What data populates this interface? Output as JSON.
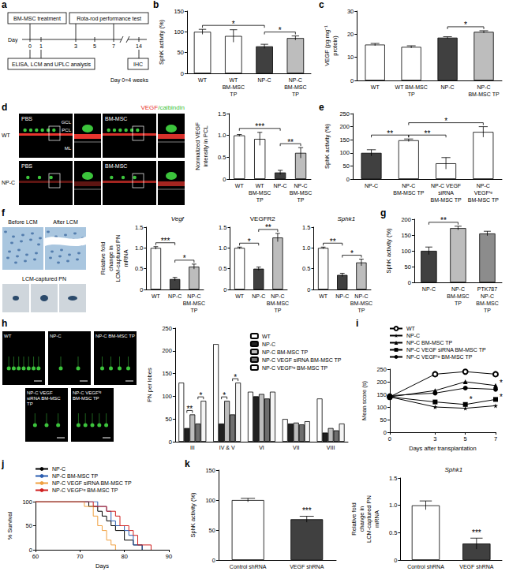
{
  "diagram_a": {
    "panel": "a",
    "treatment": "BM-MSC treatment",
    "test": "Rota-rod performance test",
    "analysis": "ELISA, LCM and UPLC analysis",
    "histology": "IHC",
    "axis_label": "Day",
    "days": [
      "0",
      "1",
      "3",
      "5",
      "7",
      "14"
    ],
    "note": "Day 0=4 weeks"
  },
  "images_d": {
    "panel": "d",
    "columns": [
      "PBS",
      "BM-MSC"
    ],
    "rows": [
      "WT",
      "NP-C"
    ],
    "layers": [
      "GCL",
      "PCL",
      "ML"
    ],
    "stain": [
      {
        "text": "VEGF",
        "color": "#e8352e"
      },
      {
        "text": "/calbindin",
        "color": "#3cc43c"
      }
    ]
  },
  "images_f": {
    "panel": "f",
    "captions": [
      "Before LCM",
      "After LCM",
      "LCM-captured PN"
    ]
  },
  "images_h": {
    "panel": "h",
    "captions": [
      "WT",
      "NP-C",
      "NP-C BM-MSC TP",
      "NP-C VEGF siRNA BM-MSC TP",
      "NP-C VEGFᵗᵍ BM-MSC TP"
    ]
  },
  "chart_data": [
    {
      "panel": "b",
      "type": "bar",
      "ylabel": "SphK activity (%)",
      "categories": [
        "WT",
        "WT BM-MSC TP",
        "NP-C",
        "NP-C BM-MSC TP"
      ],
      "values": [
        100,
        90,
        65,
        85
      ],
      "errors": [
        6,
        15,
        5,
        5
      ],
      "colors": [
        "#ffffff",
        "#ffffff",
        "#404040",
        "#bdbdbd"
      ],
      "ylim": [
        0,
        150
      ],
      "yticks": [
        0,
        50,
        100,
        150
      ],
      "annotations": [
        {
          "from": 0,
          "to": 2,
          "text": "*"
        },
        {
          "from": 2,
          "to": 3,
          "text": "*"
        }
      ]
    },
    {
      "panel": "c",
      "type": "bar",
      "ylabel": "VEGF (pg mg⁻¹ protein)",
      "categories": [
        "WT",
        "WT BM-MSC TP",
        "NP-C",
        "NP-C BM-MSC TP"
      ],
      "values": [
        15.5,
        14.5,
        18.5,
        21
      ],
      "errors": [
        0.5,
        0.5,
        0.4,
        0.5
      ],
      "colors": [
        "#ffffff",
        "#ffffff",
        "#404040",
        "#bdbdbd"
      ],
      "ylim": [
        0,
        30
      ],
      "yticks": [
        0,
        10,
        20,
        30
      ],
      "annotations": [
        {
          "from": 2,
          "to": 3,
          "text": "*"
        }
      ]
    },
    {
      "type": "bar",
      "ylabel": "Normalized VEGF intensity in PCL",
      "categories": [
        "WT",
        "WT BM-MSC TP",
        "NP-C",
        "NP-C BM-MSC TP"
      ],
      "values": [
        1.0,
        0.92,
        0.15,
        0.6
      ],
      "errors": [
        0.02,
        0.15,
        0.05,
        0.12
      ],
      "colors": [
        "#ffffff",
        "#ffffff",
        "#404040",
        "#bdbdbd"
      ],
      "ylim": [
        0,
        1.5
      ],
      "yticks": [
        0,
        0.5,
        {
          "value": 1,
          "label": "1.0"
        },
        1.5
      ],
      "annotations": [
        {
          "from": 0,
          "to": 2,
          "text": "***"
        },
        {
          "from": 2,
          "to": 3,
          "text": "**"
        }
      ]
    },
    {
      "panel": "e",
      "type": "bar",
      "ylabel": "SphK activity (%)",
      "categories": [
        "NP-C",
        "NP-C BM-MSC TP",
        "NP-C VEGF siRNA BM-MSC TP",
        "NP-C VEGFᵗᵍ BM-MSC TP"
      ],
      "values": [
        100,
        148,
        60,
        180
      ],
      "errors": [
        12,
        5,
        22,
        20
      ],
      "colors": [
        "#404040",
        "#ffffff",
        "#ffffff",
        "#ffffff"
      ],
      "ylim": [
        0,
        250
      ],
      "yticks": [
        0,
        50,
        100,
        150,
        200,
        250
      ],
      "annotations": [
        {
          "from": 0,
          "to": 1,
          "text": "**"
        },
        {
          "from": 1,
          "to": 2,
          "text": "**"
        },
        {
          "from": 1,
          "to": 3,
          "text": "*"
        }
      ]
    },
    {
      "type": "bar",
      "title": "Vegf",
      "ylabel": "Relative fold change in LCM-captured PN mRNA",
      "categories": [
        "WT",
        "NP-C",
        "NP-C BM-MSC TP"
      ],
      "values": [
        1.0,
        0.25,
        0.55
      ],
      "errors": [
        0.03,
        0.04,
        0.06
      ],
      "colors": [
        "#ffffff",
        "#404040",
        "#bdbdbd"
      ],
      "ylim": [
        0,
        1.5
      ],
      "yticks": [
        0,
        0.5,
        {
          "value": 1,
          "label": "1.0"
        },
        1.5
      ],
      "annotations": [
        {
          "from": 0,
          "to": 1,
          "text": "***"
        },
        {
          "from": 1,
          "to": 2,
          "text": "*"
        }
      ]
    },
    {
      "type": "bar",
      "title": "VEGFR2",
      "categories": [
        "WT",
        "NP-C",
        "NP-C BM-MSC TP"
      ],
      "values": [
        1.0,
        0.5,
        1.25
      ],
      "errors": [
        0.02,
        0.04,
        0.1
      ],
      "colors": [
        "#ffffff",
        "#404040",
        "#bdbdbd"
      ],
      "ylim": [
        0,
        1.5
      ],
      "yticks": [
        0,
        0.5,
        {
          "value": 1,
          "label": "1.0"
        },
        1.5
      ],
      "annotations": [
        {
          "from": 0,
          "to": 1,
          "text": "*"
        },
        {
          "from": 1,
          "to": 2,
          "text": "**"
        }
      ]
    },
    {
      "type": "bar",
      "title": "Sphk1",
      "categories": [
        "WT",
        "NP-C",
        "NP-C BM-MSC TP"
      ],
      "values": [
        1.0,
        0.35,
        0.65
      ],
      "errors": [
        0.02,
        0.04,
        0.08
      ],
      "colors": [
        "#ffffff",
        "#404040",
        "#bdbdbd"
      ],
      "ylim": [
        0,
        1.5
      ],
      "yticks": [
        0,
        0.5,
        {
          "value": 1,
          "label": "1.0"
        },
        1.5
      ],
      "annotations": [
        {
          "from": 0,
          "to": 1,
          "text": "**"
        },
        {
          "from": 1,
          "to": 2,
          "text": "*"
        }
      ]
    },
    {
      "panel": "g",
      "type": "bar",
      "ylabel": "SphK activity (%)",
      "categories": [
        "NP-C",
        "NP-C BM-MSC TP",
        "PTK787 NP-C BM-MSC TP"
      ],
      "values": [
        100,
        172,
        155
      ],
      "errors": [
        12,
        6,
        7
      ],
      "colors": [
        "#404040",
        "#bdbdbd",
        "#8c8c8c"
      ],
      "ylim": [
        0,
        200
      ],
      "yticks": [
        0,
        50,
        100,
        150,
        200
      ],
      "annotations": [
        {
          "from": 0,
          "to": 1,
          "text": "**"
        }
      ]
    },
    {
      "type": "bar",
      "ylabel": "PN per lobes",
      "categories": [
        "III",
        "IV & V",
        "VI",
        "VII",
        "VIII"
      ],
      "series": [
        {
          "name": "WT",
          "color": "#ffffff",
          "values": [
            130,
            215,
            110,
            50,
            95
          ]
        },
        {
          "name": "NP-C",
          "color": "#202020",
          "values": [
            30,
            40,
            100,
            40,
            20
          ]
        },
        {
          "name": "NP-C BM-MSC TP",
          "color": "#bdbdbd",
          "values": [
            60,
            90,
            105,
            42,
            30
          ]
        },
        {
          "name": "NP-C VEGF siRNA BM-MSC TP",
          "color": "#6e6e6e",
          "values": [
            40,
            60,
            95,
            38,
            25
          ]
        },
        {
          "name": "NP-C VEGFᵗᵍ BM-MSC TP",
          "color": "#f4f4f4",
          "values": [
            90,
            130,
            110,
            45,
            40
          ]
        }
      ],
      "ylim": [
        0,
        250
      ],
      "yticks": [
        0,
        50,
        100,
        150,
        200,
        250
      ],
      "legend": "top-right",
      "annotations": [
        {
          "category": 0,
          "from": 1,
          "to": 2,
          "text": "**"
        },
        {
          "category": 0,
          "from": 3,
          "to": 4,
          "text": "*"
        },
        {
          "category": 1,
          "from": 1,
          "to": 2,
          "text": "*"
        },
        {
          "category": 1,
          "from": 3,
          "to": 4,
          "text": "*"
        }
      ]
    },
    {
      "panel": "i",
      "type": "line",
      "xlabel": "Days after transplantation",
      "ylabel": "Mean score (s)",
      "x": [
        0,
        3,
        5,
        7
      ],
      "xlim": [
        0,
        7
      ],
      "xticks": [
        0,
        3,
        5,
        7
      ],
      "ylim": [
        0,
        250
      ],
      "yticks": [
        0,
        50,
        100,
        150,
        200,
        250
      ],
      "legend": "top",
      "series": [
        {
          "name": "WT",
          "color": "#000000",
          "marker": "circle_open",
          "values": [
            140,
            230,
            240,
            230
          ]
        },
        {
          "name": "NP-C",
          "color": "#000000",
          "marker": "star",
          "values": [
            140,
            100,
            95,
            105
          ]
        },
        {
          "name": "NP-C BM-MSC TP",
          "color": "#000000",
          "marker": "triangle",
          "values": [
            140,
            165,
            200,
            185
          ]
        },
        {
          "name": "NP-C VEGF siRNA BM-MSC TP",
          "color": "#000000",
          "marker": "square",
          "values": [
            140,
            120,
            110,
            130
          ]
        },
        {
          "name": "NP-C VEGFᵗᵍ BM-MSC TP",
          "color": "#000000",
          "marker": "circle",
          "values": [
            145,
            155,
            175,
            170
          ]
        }
      ],
      "annotations": [
        {
          "x": 5,
          "y": 140,
          "text": "*"
        },
        {
          "x": 7,
          "y": 205,
          "text": "*"
        },
        {
          "x": 7,
          "y": 150,
          "text": "*"
        }
      ]
    },
    {
      "panel": "j",
      "type": "step",
      "xlabel": "Days",
      "ylabel": "% Survival",
      "xlim": [
        60,
        90
      ],
      "xticks": [
        60,
        70,
        80,
        90
      ],
      "ylim": [
        0,
        100
      ],
      "yticks": [
        0,
        50,
        100
      ],
      "legend": "top",
      "series": [
        {
          "name": "NP-C",
          "color": "#000000",
          "x": [
            60,
            72,
            74,
            75,
            76,
            77,
            78,
            80,
            82,
            84
          ],
          "values": [
            100,
            90,
            80,
            70,
            60,
            50,
            40,
            20,
            10,
            0
          ]
        },
        {
          "name": "NP-C BM-MSC TP",
          "color": "#2a5db0",
          "x": [
            60,
            74,
            76,
            77,
            78,
            80,
            81,
            82,
            84
          ],
          "values": [
            100,
            90,
            80,
            60,
            50,
            40,
            30,
            10,
            0
          ]
        },
        {
          "name": "NP-C VEGF siRNA BM-MSC TP",
          "color": "#f0a040",
          "x": [
            60,
            71,
            73,
            74,
            75,
            76,
            77,
            78
          ],
          "values": [
            100,
            90,
            70,
            50,
            40,
            20,
            10,
            0
          ]
        },
        {
          "name": "NP-C VEGFᵗᵍ BM-MSC TP",
          "color": "#d02020",
          "x": [
            60,
            73,
            76,
            78,
            79,
            81,
            82,
            83,
            86
          ],
          "values": [
            100,
            90,
            80,
            70,
            50,
            40,
            30,
            10,
            0
          ]
        }
      ]
    },
    {
      "panel": "k",
      "type": "bar",
      "ylabel": "SphK activity (%)",
      "categories": [
        "Control shRNA",
        "VEGF shRNA"
      ],
      "values": [
        100,
        68
      ],
      "errors": [
        3,
        5
      ],
      "colors": [
        "#ffffff",
        "#404040"
      ],
      "ylim": [
        0,
        150
      ],
      "yticks": [
        0,
        50,
        100,
        150
      ],
      "annotations": [
        {
          "from": 1,
          "to": 1,
          "text": "***"
        }
      ]
    },
    {
      "type": "bar",
      "title": "Sphk1",
      "ylabel": "Relative fold change in LCM-captured PN mRNA",
      "categories": [
        "Control shRNA",
        "VEGF shRNA"
      ],
      "values": [
        1.0,
        0.3
      ],
      "errors": [
        0.08,
        0.1
      ],
      "colors": [
        "#ffffff",
        "#404040"
      ],
      "ylim": [
        0,
        1.5
      ],
      "yticks": [
        0,
        0.5,
        {
          "value": 1,
          "label": "1.0"
        },
        1.5
      ],
      "annotations": [
        {
          "from": 1,
          "to": 1,
          "text": "***"
        }
      ]
    }
  ]
}
